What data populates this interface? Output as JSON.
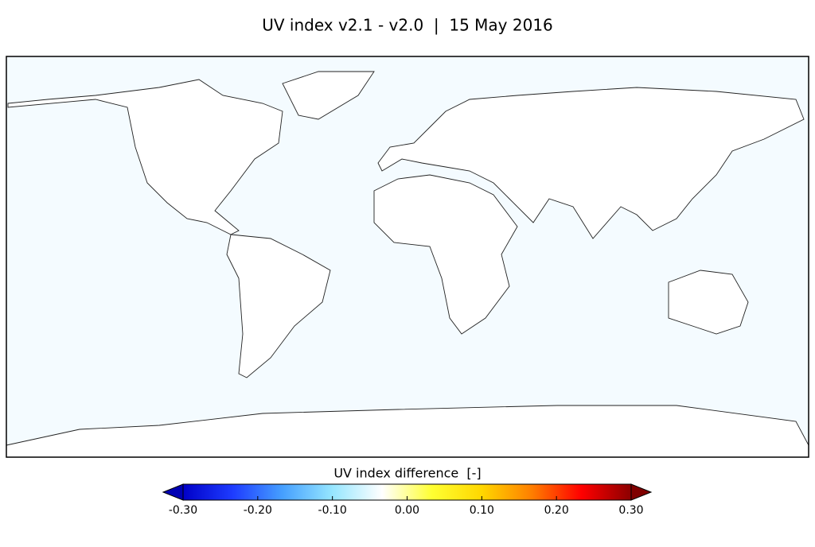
{
  "chart_data": {
    "type": "map",
    "title": "UV index v2.1 - v2.0  |  15 May 2016",
    "colorbar": {
      "label": "UV index difference  [-]",
      "lim": [
        -0.3,
        0.3
      ],
      "ticks": [
        {
          "value": -0.3,
          "label": "-0.30"
        },
        {
          "value": -0.2,
          "label": "-0.20"
        },
        {
          "value": -0.1,
          "label": "-0.10"
        },
        {
          "value": 0,
          "label": "0.00"
        },
        {
          "value": 0.1,
          "label": "0.10"
        },
        {
          "value": 0.2,
          "label": "0.20"
        },
        {
          "value": 0.3,
          "label": "0.30"
        }
      ],
      "colors": [
        "#0000c8",
        "#1e3cff",
        "#46a0ff",
        "#96e6ff",
        "#ffffff",
        "#ffff32",
        "#ffd700",
        "#ff7f00",
        "#ff0000",
        "#8b0000"
      ],
      "under_color": "#0000b4",
      "over_color": "#800000"
    }
  }
}
